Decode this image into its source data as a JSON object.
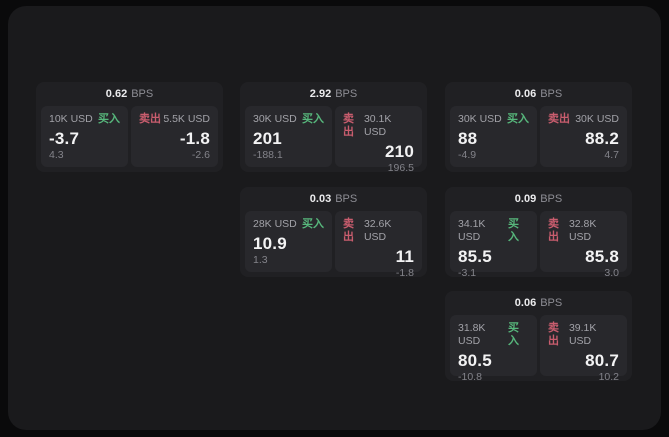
{
  "labels": {
    "bps_unit": "BPS",
    "buy": "买入",
    "sell": "卖出"
  },
  "colors": {
    "buy_green": "#57b77c",
    "sell_red": "#c95d6e",
    "surface": "#1a1a1c",
    "card": "#202023",
    "panel": "#28282c"
  },
  "cards": [
    {
      "bps": "0.62",
      "buy": {
        "size": "10K USD",
        "price": "-3.7",
        "delta": "4.3"
      },
      "sell": {
        "size": "5.5K USD",
        "price": "-1.8",
        "delta": "-2.6"
      }
    },
    {
      "bps": "2.92",
      "buy": {
        "size": "30K USD",
        "price": "201",
        "delta": "-188.1"
      },
      "sell": {
        "size": "30.1K USD",
        "price": "210",
        "delta": "196.5"
      }
    },
    {
      "bps": "0.06",
      "buy": {
        "size": "30K USD",
        "price": "88",
        "delta": "-4.9"
      },
      "sell": {
        "size": "30K USD",
        "price": "88.2",
        "delta": "4.7"
      }
    },
    {
      "bps": "0.03",
      "buy": {
        "size": "28K USD",
        "price": "10.9",
        "delta": "1.3"
      },
      "sell": {
        "size": "32.6K USD",
        "price": "11",
        "delta": "-1.8"
      }
    },
    {
      "bps": "0.09",
      "buy": {
        "size": "34.1K USD",
        "price": "85.5",
        "delta": "-3.1"
      },
      "sell": {
        "size": "32.8K USD",
        "price": "85.8",
        "delta": "3.0"
      }
    },
    {
      "bps": "0.06",
      "buy": {
        "size": "31.8K USD",
        "price": "80.5",
        "delta": "-10.8"
      },
      "sell": {
        "size": "39.1K USD",
        "price": "80.7",
        "delta": "10.2"
      }
    }
  ]
}
